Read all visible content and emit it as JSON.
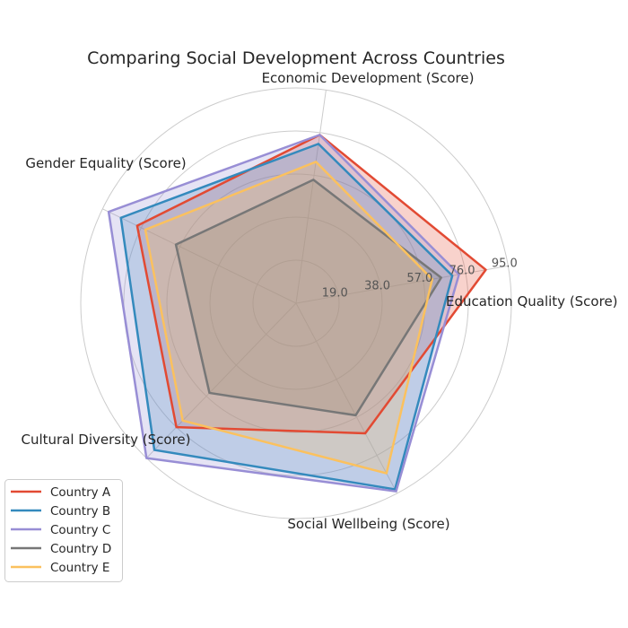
{
  "chart_data": {
    "type": "radar",
    "title": "Comparing Social Development Across Countries",
    "categories": [
      "Education Quality (Score)",
      "Economic Development (Score)",
      "Gender Equality (Score)",
      "Cultural Diversity (Score)",
      "Social Wellbeing (Score)"
    ],
    "rlim": [
      0,
      95
    ],
    "rticks": [
      19,
      38,
      57,
      76,
      95
    ],
    "rtick_labels": [
      "19.0",
      "38.0",
      "57.0",
      "76.0",
      "95.0"
    ],
    "grid": true,
    "legend": "bottom-left",
    "series": [
      {
        "name": "Country A",
        "color": "#E24A33",
        "fill_alpha": 0.25,
        "values": [
          85,
          75,
          78,
          76,
          65
        ]
      },
      {
        "name": "Country B",
        "color": "#348ABD",
        "fill_alpha": 0.25,
        "values": [
          70,
          71,
          86,
          90,
          93
        ]
      },
      {
        "name": "Country C",
        "color": "#988ED5",
        "fill_alpha": 0.25,
        "values": [
          73,
          75,
          92,
          95,
          94
        ]
      },
      {
        "name": "Country D",
        "color": "#777777",
        "fill_alpha": 0.25,
        "values": [
          65,
          55,
          59,
          55,
          56
        ]
      },
      {
        "name": "Country E",
        "color": "#FBC15E",
        "fill_alpha": 0.25,
        "values": [
          61,
          63,
          74,
          72,
          85
        ]
      }
    ]
  }
}
